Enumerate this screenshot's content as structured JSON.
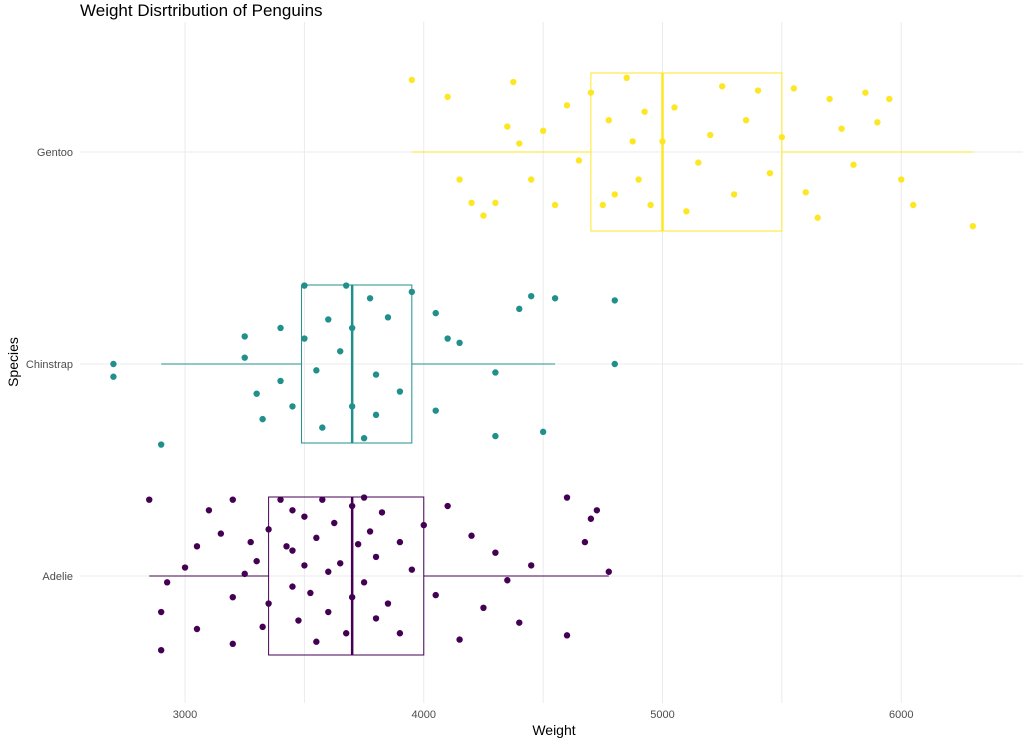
{
  "chart_data": {
    "type": "box-jitter",
    "title": "Weight Disrtribution of Penguins",
    "xlabel": "Weight",
    "ylabel": "Species",
    "xlim": [
      2560,
      6510
    ],
    "x_ticks": [
      3000,
      4000,
      5000,
      6000
    ],
    "x_tick_labels": [
      "3000",
      "4000",
      "5000",
      "6000"
    ],
    "categories": [
      "Adelie",
      "Chinstrap",
      "Gentoo"
    ],
    "grid": true,
    "legend": "none",
    "series": [
      {
        "name": "Adelie",
        "color": "#440154",
        "box": {
          "min": 2850,
          "q1": 3350,
          "median": 3700,
          "q3": 4000,
          "max": 4775
        },
        "points": [
          [
            2850,
            0.36
          ],
          [
            2900,
            -0.17
          ],
          [
            2900,
            -0.35
          ],
          [
            2925,
            -0.03
          ],
          [
            3000,
            0.04
          ],
          [
            3050,
            -0.25
          ],
          [
            3050,
            0.14
          ],
          [
            3100,
            0.31
          ],
          [
            3150,
            0.2
          ],
          [
            3200,
            -0.1
          ],
          [
            3200,
            -0.32
          ],
          [
            3200,
            0.36
          ],
          [
            3250,
            0.01
          ],
          [
            3275,
            0.16
          ],
          [
            3300,
            0.07
          ],
          [
            3325,
            -0.24
          ],
          [
            3350,
            0.22
          ],
          [
            3350,
            -0.13
          ],
          [
            3400,
            0.36
          ],
          [
            3425,
            0.14
          ],
          [
            3450,
            -0.05
          ],
          [
            3450,
            0.31
          ],
          [
            3450,
            0.12
          ],
          [
            3475,
            -0.21
          ],
          [
            3500,
            0.05
          ],
          [
            3500,
            0.28
          ],
          [
            3525,
            -0.08
          ],
          [
            3550,
            -0.31
          ],
          [
            3550,
            0.18
          ],
          [
            3575,
            0.36
          ],
          [
            3600,
            -0.17
          ],
          [
            3600,
            0.02
          ],
          [
            3625,
            0.25
          ],
          [
            3650,
            0.06
          ],
          [
            3675,
            -0.27
          ],
          [
            3700,
            0.33
          ],
          [
            3700,
            -0.1
          ],
          [
            3725,
            0.15
          ],
          [
            3750,
            0.37
          ],
          [
            3750,
            -0.03
          ],
          [
            3775,
            0.21
          ],
          [
            3800,
            -0.2
          ],
          [
            3800,
            0.09
          ],
          [
            3825,
            0.3
          ],
          [
            3850,
            -0.13
          ],
          [
            3900,
            0.16
          ],
          [
            3900,
            -0.27
          ],
          [
            3950,
            0.03
          ],
          [
            4000,
            0.24
          ],
          [
            4050,
            -0.09
          ],
          [
            4100,
            0.33
          ],
          [
            4150,
            -0.3
          ],
          [
            4200,
            0.19
          ],
          [
            4250,
            -0.15
          ],
          [
            4300,
            0.11
          ],
          [
            4350,
            -0.02
          ],
          [
            4400,
            -0.22
          ],
          [
            4450,
            0.05
          ],
          [
            4600,
            0.37
          ],
          [
            4600,
            -0.28
          ],
          [
            4675,
            0.16
          ],
          [
            4700,
            0.27
          ],
          [
            4725,
            0.31
          ],
          [
            4775,
            0.02
          ]
        ]
      },
      {
        "name": "Chinstrap",
        "color": "#21908C",
        "box": {
          "min": 2900,
          "q1": 3488,
          "median": 3700,
          "q3": 3950,
          "max": 4550
        },
        "points": [
          [
            2700,
            0.0
          ],
          [
            2700,
            -0.06
          ],
          [
            2900,
            -0.38
          ],
          [
            3250,
            0.13
          ],
          [
            3250,
            0.03
          ],
          [
            3300,
            -0.14
          ],
          [
            3325,
            -0.26
          ],
          [
            3400,
            -0.08
          ],
          [
            3400,
            0.17
          ],
          [
            3450,
            -0.2
          ],
          [
            3500,
            0.37
          ],
          [
            3500,
            0.12
          ],
          [
            3550,
            -0.03
          ],
          [
            3575,
            -0.3
          ],
          [
            3600,
            0.21
          ],
          [
            3650,
            0.06
          ],
          [
            3675,
            0.37
          ],
          [
            3700,
            -0.2
          ],
          [
            3700,
            0.17
          ],
          [
            3750,
            -0.35
          ],
          [
            3775,
            0.31
          ],
          [
            3800,
            -0.05
          ],
          [
            3800,
            -0.24
          ],
          [
            3850,
            0.22
          ],
          [
            3900,
            -0.13
          ],
          [
            3950,
            0.34
          ],
          [
            4050,
            0.24
          ],
          [
            4050,
            -0.22
          ],
          [
            4100,
            0.12
          ],
          [
            4150,
            0.1
          ],
          [
            4300,
            -0.04
          ],
          [
            4300,
            -0.34
          ],
          [
            4400,
            0.26
          ],
          [
            4450,
            0.32
          ],
          [
            4500,
            -0.32
          ],
          [
            4550,
            0.31
          ],
          [
            4800,
            0.3
          ],
          [
            4800,
            0.0
          ]
        ]
      },
      {
        "name": "Gentoo",
        "color": "#FDE725",
        "box": {
          "min": 3950,
          "q1": 4700,
          "median": 5000,
          "q3": 5500,
          "max": 6300
        },
        "points": [
          [
            3950,
            0.34
          ],
          [
            4100,
            0.26
          ],
          [
            4150,
            -0.13
          ],
          [
            4200,
            -0.24
          ],
          [
            4250,
            -0.3
          ],
          [
            4300,
            -0.24
          ],
          [
            4350,
            0.12
          ],
          [
            4375,
            0.33
          ],
          [
            4400,
            0.04
          ],
          [
            4450,
            -0.13
          ],
          [
            4500,
            0.1
          ],
          [
            4550,
            -0.25
          ],
          [
            4600,
            0.22
          ],
          [
            4650,
            -0.04
          ],
          [
            4700,
            0.28
          ],
          [
            4750,
            -0.25
          ],
          [
            4775,
            0.15
          ],
          [
            4800,
            -0.2
          ],
          [
            4850,
            0.35
          ],
          [
            4875,
            0.05
          ],
          [
            4900,
            -0.13
          ],
          [
            4925,
            0.19
          ],
          [
            4950,
            -0.25
          ],
          [
            5000,
            0.05
          ],
          [
            5050,
            0.21
          ],
          [
            5100,
            -0.28
          ],
          [
            5150,
            -0.05
          ],
          [
            5200,
            0.08
          ],
          [
            5250,
            0.31
          ],
          [
            5300,
            -0.2
          ],
          [
            5350,
            0.15
          ],
          [
            5400,
            0.29
          ],
          [
            5450,
            -0.1
          ],
          [
            5500,
            0.07
          ],
          [
            5550,
            0.3
          ],
          [
            5600,
            -0.19
          ],
          [
            5650,
            -0.31
          ],
          [
            5700,
            0.25
          ],
          [
            5750,
            0.11
          ],
          [
            5800,
            -0.06
          ],
          [
            5850,
            0.28
          ],
          [
            5900,
            0.14
          ],
          [
            5950,
            0.25
          ],
          [
            6000,
            -0.13
          ],
          [
            6050,
            -0.25
          ],
          [
            6300,
            -0.35
          ]
        ]
      }
    ]
  }
}
